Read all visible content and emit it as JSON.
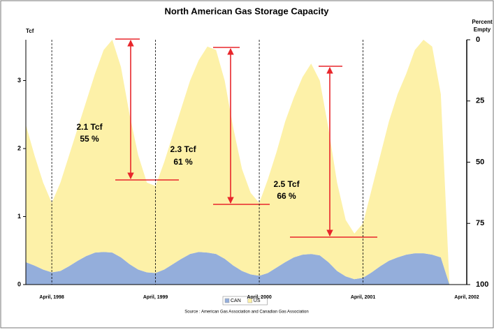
{
  "chart_data": {
    "type": "stacked_area",
    "title": "North American Gas Storage Capacity",
    "y_label": "Tcf",
    "y2_label": [
      "Percent",
      "Empty"
    ],
    "source": "Source :  American Gas Association and Canadian Gas Association",
    "categories": [
      null,
      null,
      null,
      "April, 1998",
      null,
      null,
      null,
      null,
      null,
      null,
      null,
      null,
      null,
      null,
      null,
      "April, 1999",
      null,
      null,
      null,
      null,
      null,
      null,
      null,
      null,
      null,
      null,
      null,
      "April, 2000",
      null,
      null,
      null,
      null,
      null,
      null,
      null,
      null,
      null,
      null,
      null,
      "April, 2001",
      null,
      null,
      null,
      null,
      null,
      null,
      null,
      null,
      null,
      null,
      null,
      "April, 2002"
    ],
    "series": [
      {
        "name": "CAN",
        "color": "#94aedb",
        "values": [
          0.33,
          0.28,
          0.22,
          0.18,
          0.2,
          0.27,
          0.35,
          0.42,
          0.47,
          0.48,
          0.47,
          0.4,
          0.3,
          0.22,
          0.18,
          0.17,
          0.22,
          0.3,
          0.38,
          0.45,
          0.48,
          0.47,
          0.45,
          0.38,
          0.28,
          0.2,
          0.15,
          0.13,
          0.17,
          0.25,
          0.33,
          0.4,
          0.44,
          0.45,
          0.43,
          0.33,
          0.2,
          0.12,
          0.08,
          0.1,
          0.18,
          0.27,
          0.35,
          0.4,
          0.44,
          0.46,
          0.46,
          0.44,
          0.4,
          0,
          null,
          null
        ]
      },
      {
        "name": "US",
        "color": "#fdf1a8",
        "values": [
          2.02,
          1.62,
          1.28,
          1.02,
          1.3,
          1.63,
          1.95,
          2.28,
          2.63,
          2.97,
          3.13,
          2.8,
          2.2,
          1.68,
          1.32,
          1.28,
          1.58,
          1.9,
          2.22,
          2.55,
          2.82,
          3.03,
          3.0,
          2.62,
          2.02,
          1.5,
          1.2,
          1.07,
          1.38,
          1.7,
          2.07,
          2.35,
          2.61,
          2.8,
          2.57,
          1.97,
          1.3,
          0.83,
          0.67,
          0.8,
          1.22,
          1.63,
          2.05,
          2.4,
          2.66,
          2.99,
          3.14,
          3.06,
          2.4,
          0,
          null,
          null
        ]
      }
    ],
    "ylim": [
      0,
      3.6
    ],
    "yticks": [
      0,
      1,
      2,
      3
    ],
    "y2lim": [
      100,
      0
    ],
    "y2ticks": [
      0,
      25,
      50,
      75,
      100
    ],
    "annotations": [
      "2.1 Tcf",
      "55 %",
      "2.3 Tcf",
      "61 %",
      "2.5 Tcf",
      "66 %"
    ],
    "legend": "bottom"
  }
}
